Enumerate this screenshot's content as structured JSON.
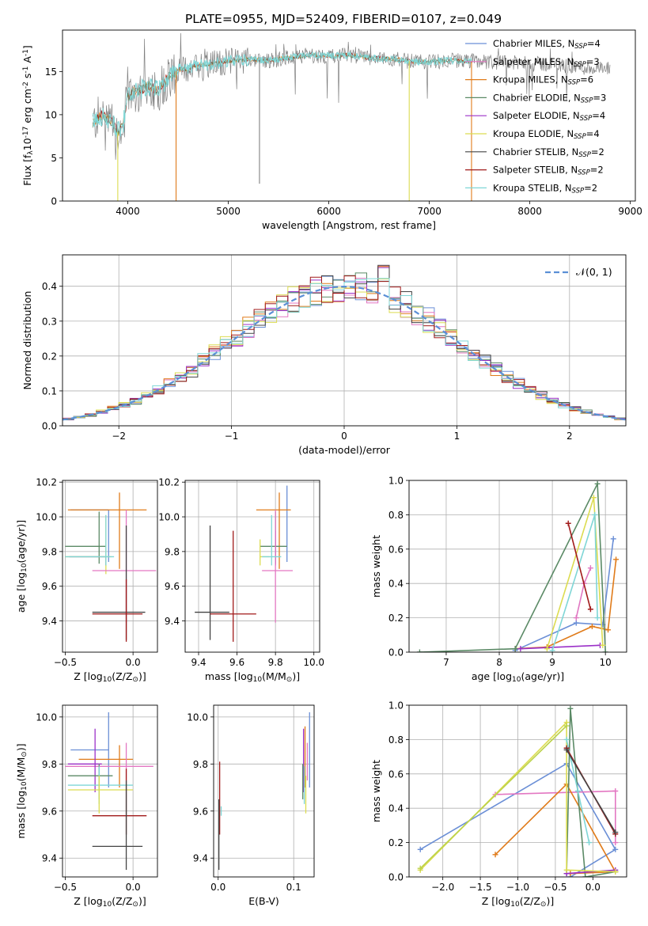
{
  "figure": {
    "title": "PLATE=0955, MJD=52409, FIBERID=0107, z=0.049"
  },
  "legend_fits": [
    {
      "label": "Chabrier MILES, N",
      "sub": "SSP",
      "tail": "=4",
      "color": "#6b8fd6"
    },
    {
      "label": "Salpeter MILES, N",
      "sub": "SSP",
      "tail": "=3",
      "color": "#e377c2"
    },
    {
      "label": "Kroupa MILES, N",
      "sub": "SSP",
      "tail": "=6",
      "color": "#e07b1a"
    },
    {
      "label": "Chabrier ELODIE, N",
      "sub": "SSP",
      "tail": "=3",
      "color": "#5b8a66"
    },
    {
      "label": "Salpeter ELODIE, N",
      "sub": "SSP",
      "tail": "=4",
      "color": "#9b30c8"
    },
    {
      "label": "Kroupa ELODIE, N",
      "sub": "SSP",
      "tail": "=4",
      "color": "#dcdc50"
    },
    {
      "label": "Chabrier STELIB, N",
      "sub": "SSP",
      "tail": "=2",
      "color": "#444444"
    },
    {
      "label": "Salpeter STELIB, N",
      "sub": "SSP",
      "tail": "=2",
      "color": "#a11a1a"
    },
    {
      "label": "Kroupa STELIB, N",
      "sub": "SSP",
      "tail": "=2",
      "color": "#7fd6d6"
    }
  ],
  "chart_data": [
    {
      "id": "spectrum",
      "type": "line",
      "xlabel": "wavelength [Angstrom, rest frame]",
      "ylabel_parts": [
        "Flux [f",
        "λ",
        "10",
        "-17",
        " erg cm",
        "-2",
        " s",
        "-1",
        " A",
        "-1",
        "]"
      ],
      "xlim": [
        3350,
        9050
      ],
      "ylim": [
        0,
        19.8
      ],
      "xticks": [
        4000,
        5000,
        6000,
        7000,
        8000,
        9000
      ],
      "yticks": [
        0,
        5,
        10,
        15
      ],
      "grid": false,
      "legend_position": "right",
      "data_color": "#808080",
      "model_color": "#7fd6d6",
      "continuum": {
        "x": [
          3650,
          3700,
          3750,
          3800,
          3850,
          3900,
          3950,
          4000,
          4050,
          4100,
          4200,
          4300,
          4400,
          4500,
          4600,
          4700,
          4800,
          4900,
          5000,
          5200,
          5400,
          5600,
          5800,
          6000,
          6200,
          6400,
          6600,
          6800,
          7000,
          7200,
          7400,
          7600,
          7800,
          8000,
          8200,
          8400,
          8600,
          8800
        ],
        "y": [
          9.0,
          9.6,
          10.0,
          9.4,
          9.0,
          8.0,
          8.6,
          12.0,
          12.8,
          12.6,
          13.4,
          12.8,
          14.4,
          15.2,
          15.3,
          15.8,
          15.8,
          16.0,
          16.2,
          16.4,
          16.3,
          16.6,
          16.9,
          16.8,
          16.9,
          16.6,
          16.5,
          16.2,
          16.1,
          16.3,
          16.2,
          16.1,
          16.0,
          15.9,
          15.8,
          15.6,
          15.4,
          15.2
        ]
      },
      "model_range": [
        3650,
        7420
      ],
      "spikes": [
        {
          "x": 3900,
          "y": 0,
          "color": "#dcdc50"
        },
        {
          "x": 4480,
          "y": 0,
          "color": "#e07b1a"
        },
        {
          "x": 5310,
          "y": 2,
          "color": "#808080"
        },
        {
          "x": 6800,
          "y": 0,
          "color": "#dcdc50"
        },
        {
          "x": 7420,
          "y": 0,
          "color": "#e07b1a"
        }
      ]
    },
    {
      "id": "residuals",
      "type": "bar",
      "xlabel": "(data-model)/error",
      "ylabel": "Normed distribution",
      "xlim": [
        -2.5,
        2.5
      ],
      "ylim": [
        0,
        0.49
      ],
      "xticks": [
        -2,
        -1,
        0,
        1,
        2
      ],
      "yticks": [
        0.0,
        0.1,
        0.2,
        0.3,
        0.4
      ],
      "grid": true,
      "legend": "𝒩(0, 1)",
      "legend_position": "top-right",
      "normal_color": "#5b8fd6",
      "bin_width": 0.1,
      "series_colors": [
        "#6b8fd6",
        "#e377c2",
        "#e07b1a",
        "#5b8a66",
        "#9b30c8",
        "#dcdc50",
        "#444444",
        "#a11a1a",
        "#7fd6d6"
      ]
    },
    {
      "id": "age-vs-Z",
      "type": "scatter",
      "xlabel_parts": [
        "Z [log",
        "10",
        "(Z/Z",
        "⊙",
        ")]"
      ],
      "ylabel_parts": [
        "age  [log",
        "10",
        "(age/yr)]"
      ],
      "xlim": [
        -0.52,
        0.18
      ],
      "ylim": [
        9.22,
        10.21
      ],
      "xticks": [
        -0.5,
        0.0
      ],
      "yticks": [
        9.4,
        9.6,
        9.8,
        10.0,
        10.2
      ],
      "grid": true,
      "points": [
        {
          "x": -0.18,
          "xerr": [
            0.28,
            0.0
          ],
          "y": 10.04,
          "yerr": [
            0.3,
            0.0
          ],
          "color": "#6b8fd6"
        },
        {
          "x": -0.1,
          "xerr": [
            0.38,
            0.2
          ],
          "y": 10.04,
          "yerr": [
            0.34,
            0.1
          ],
          "color": "#e07b1a"
        },
        {
          "x": -0.25,
          "xerr": [
            0.25,
            0.05
          ],
          "y": 9.83,
          "yerr": [
            0.1,
            0.2
          ],
          "color": "#5b8a66"
        },
        {
          "x": -0.2,
          "xerr": [
            0.27,
            0.0
          ],
          "y": 9.77,
          "yerr": [
            0.05,
            0.0
          ],
          "color": "#9b30c8"
        },
        {
          "x": -0.2,
          "xerr": [
            0.3,
            0.04
          ],
          "y": 9.77,
          "yerr": [
            0.1,
            0.24
          ],
          "color": "#dcdc50"
        },
        {
          "x": -0.05,
          "xerr": [
            0.25,
            0.22
          ],
          "y": 9.69,
          "yerr": [
            0.3,
            0.35
          ],
          "color": "#e377c2"
        },
        {
          "x": -0.2,
          "xerr": [
            0.3,
            0.06
          ],
          "y": 9.77,
          "yerr": [
            0.05,
            0.24
          ],
          "color": "#7fd6d6"
        },
        {
          "x": -0.05,
          "xerr": [
            0.25,
            0.14
          ],
          "y": 9.45,
          "yerr": [
            0.16,
            0.5
          ],
          "color": "#444444"
        },
        {
          "x": -0.05,
          "xerr": [
            0.25,
            0.12
          ],
          "y": 9.44,
          "yerr": [
            0.16,
            0.2
          ],
          "color": "#a11a1a"
        }
      ]
    },
    {
      "id": "age-vs-mass",
      "type": "scatter",
      "xlabel_parts": [
        "mass [log",
        "10",
        "(M/M",
        "⊙",
        ")]"
      ],
      "ylabel_parts": [],
      "xlim": [
        9.33,
        10.03
      ],
      "ylim": [
        9.22,
        10.21
      ],
      "xticks": [
        9.4,
        9.6,
        9.8,
        10.0
      ],
      "yticks": [
        9.4,
        9.6,
        9.8,
        10.0,
        10.2
      ],
      "grid": true,
      "points": [
        {
          "x": 9.86,
          "xerr": [
            0.0,
            0.0
          ],
          "y": 10.04,
          "yerr": [
            0.3,
            0.14
          ],
          "color": "#6b8fd6"
        },
        {
          "x": 9.82,
          "xerr": [
            0.12,
            0.06
          ],
          "y": 10.04,
          "yerr": [
            0.34,
            0.1
          ],
          "color": "#e07b1a"
        },
        {
          "x": 9.8,
          "xerr": [
            0.08,
            0.06
          ],
          "y": 9.83,
          "yerr": [
            0.1,
            0.2
          ],
          "color": "#5b8a66"
        },
        {
          "x": 9.8,
          "xerr": [
            0.0,
            0.0
          ],
          "y": 9.77,
          "yerr": [
            0.05,
            0.15
          ],
          "color": "#9b30c8"
        },
        {
          "x": 9.72,
          "xerr": [
            0.0,
            0.05
          ],
          "y": 9.77,
          "yerr": [
            0.05,
            0.1
          ],
          "color": "#dcdc50"
        },
        {
          "x": 9.8,
          "xerr": [
            0.07,
            0.09
          ],
          "y": 9.69,
          "yerr": [
            0.3,
            0.35
          ],
          "color": "#e377c2"
        },
        {
          "x": 9.78,
          "xerr": [
            0.05,
            0.05
          ],
          "y": 9.77,
          "yerr": [
            0.05,
            0.24
          ],
          "color": "#7fd6d6"
        },
        {
          "x": 9.46,
          "xerr": [
            0.08,
            0.1
          ],
          "y": 9.45,
          "yerr": [
            0.16,
            0.5
          ],
          "color": "#444444"
        },
        {
          "x": 9.58,
          "xerr": [
            0.12,
            0.12
          ],
          "y": 9.44,
          "yerr": [
            0.16,
            0.48
          ],
          "color": "#a11a1a"
        }
      ]
    },
    {
      "id": "mass-weight-vs-age",
      "type": "line",
      "xlabel_parts": [
        "age  [log",
        "10",
        "(age/yr)]"
      ],
      "ylabel": "mass weight",
      "xlim": [
        6.3,
        10.4
      ],
      "ylim": [
        0.0,
        1.0
      ],
      "xticks": [
        7,
        8,
        9,
        10
      ],
      "yticks": [
        0.0,
        0.2,
        0.4,
        0.6,
        0.8,
        1.0
      ],
      "grid": true,
      "series": [
        {
          "color": "#6b8fd6",
          "x": [
            8.3,
            9.45,
            9.95,
            10.15
          ],
          "y": [
            0.01,
            0.17,
            0.16,
            0.66
          ]
        },
        {
          "color": "#e077c2",
          "x": [
            9.45,
            9.6,
            9.72
          ],
          "y": [
            0.2,
            0.4,
            0.49
          ]
        },
        {
          "color": "#e07b1a",
          "x": [
            8.3,
            8.9,
            9.75,
            10.05,
            10.2
          ],
          "y": [
            0.02,
            0.03,
            0.15,
            0.13,
            0.54
          ]
        },
        {
          "color": "#5b8a66",
          "x": [
            6.5,
            8.3,
            9.85,
            10.0
          ],
          "y": [
            0.0,
            0.02,
            0.98,
            0.0
          ]
        },
        {
          "color": "#9b30c8",
          "x": [
            8.4,
            9.9
          ],
          "y": [
            0.02,
            0.04
          ]
        },
        {
          "color": "#dcdc50",
          "x": [
            8.9,
            9.78,
            9.95
          ],
          "y": [
            0.02,
            0.9,
            0.04
          ]
        },
        {
          "color": "#7fd6d6",
          "x": [
            9.0,
            9.8,
            9.85
          ],
          "y": [
            0.01,
            0.8,
            0.2
          ]
        },
        {
          "color": "#a11a1a",
          "x": [
            9.3,
            9.72
          ],
          "y": [
            0.75,
            0.25
          ]
        }
      ]
    },
    {
      "id": "mass-vs-Z",
      "type": "scatter",
      "xlabel_parts": [
        "Z [log",
        "10",
        "(Z/Z",
        "⊙",
        ")]"
      ],
      "ylabel_parts": [
        "mass [log",
        "10",
        "(M/M",
        "⊙",
        ")]"
      ],
      "xlim": [
        -0.52,
        0.18
      ],
      "ylim": [
        9.32,
        10.05
      ],
      "xticks": [
        -0.5,
        0.0
      ],
      "yticks": [
        9.4,
        9.6,
        9.8,
        10.0
      ],
      "grid": true,
      "points": [
        {
          "x": -0.18,
          "xerr": [
            0.28,
            0.0
          ],
          "y": 9.86,
          "yerr": [
            0.16,
            0.16
          ],
          "color": "#6b8fd6"
        },
        {
          "x": -0.1,
          "xerr": [
            0.3,
            0.1
          ],
          "y": 9.82,
          "yerr": [
            0.12,
            0.06
          ],
          "color": "#e07b1a"
        },
        {
          "x": -0.05,
          "xerr": [
            0.45,
            0.2
          ],
          "y": 9.79,
          "yerr": [
            0.06,
            0.1
          ],
          "color": "#e377c2"
        },
        {
          "x": -0.28,
          "xerr": [
            0.2,
            0.05
          ],
          "y": 9.8,
          "yerr": [
            0.12,
            0.15
          ],
          "color": "#9b30c8"
        },
        {
          "x": -0.25,
          "xerr": [
            0.23,
            0.1
          ],
          "y": 9.75,
          "yerr": [
            0.1,
            0.05
          ],
          "color": "#5b8a66"
        },
        {
          "x": -0.25,
          "xerr": [
            0.23,
            0.25
          ],
          "y": 9.71,
          "yerr": [
            0.08,
            0.08
          ],
          "color": "#7fd6d6"
        },
        {
          "x": -0.25,
          "xerr": [
            0.23,
            0.25
          ],
          "y": 9.69,
          "yerr": [
            0.1,
            0.06
          ],
          "color": "#dcdc50"
        },
        {
          "x": -0.05,
          "xerr": [
            0.25,
            0.15
          ],
          "y": 9.58,
          "yerr": [
            0.08,
            0.2
          ],
          "color": "#a11a1a"
        },
        {
          "x": -0.05,
          "xerr": [
            0.25,
            0.12
          ],
          "y": 9.45,
          "yerr": [
            0.1,
            0.28
          ],
          "color": "#444444"
        }
      ]
    },
    {
      "id": "mass-vs-ebv",
      "type": "scatter",
      "xlabel": "E(B-V)",
      "ylabel_parts": [],
      "xlim": [
        -0.006,
        0.127
      ],
      "ylim": [
        9.32,
        10.05
      ],
      "xticks": [
        0.0,
        0.1
      ],
      "yticks": [
        9.4,
        9.6,
        9.8,
        10.0
      ],
      "grid": true,
      "points": [
        {
          "x": 0.121,
          "xerr": [
            0,
            0
          ],
          "y": 9.86,
          "yerr": [
            0.16,
            0.16
          ],
          "color": "#6b8fd6"
        },
        {
          "x": 0.115,
          "xerr": [
            0,
            0
          ],
          "y": 9.82,
          "yerr": [
            0.12,
            0.14
          ],
          "color": "#e07b1a"
        },
        {
          "x": 0.118,
          "xerr": [
            0,
            0
          ],
          "y": 9.79,
          "yerr": [
            0.06,
            0.1
          ],
          "color": "#e377c2"
        },
        {
          "x": 0.113,
          "xerr": [
            0,
            0
          ],
          "y": 9.8,
          "yerr": [
            0.12,
            0.15
          ],
          "color": "#9b30c8"
        },
        {
          "x": 0.112,
          "xerr": [
            0,
            0
          ],
          "y": 9.75,
          "yerr": [
            0.1,
            0.05
          ],
          "color": "#5b8a66"
        },
        {
          "x": 0.114,
          "xerr": [
            0,
            0
          ],
          "y": 9.71,
          "yerr": [
            0.08,
            0.08
          ],
          "color": "#7fd6d6"
        },
        {
          "x": 0.116,
          "xerr": [
            0,
            0
          ],
          "y": 9.69,
          "yerr": [
            0.1,
            0.06
          ],
          "color": "#dcdc50"
        },
        {
          "x": 0.004,
          "xerr": [
            0,
            0
          ],
          "y": 9.6,
          "yerr": [
            0.02,
            0.02
          ],
          "color": "#7fd6d6"
        },
        {
          "x": 0.002,
          "xerr": [
            0,
            0
          ],
          "y": 9.58,
          "yerr": [
            0.08,
            0.23
          ],
          "color": "#a11a1a"
        },
        {
          "x": 0.001,
          "xerr": [
            0,
            0
          ],
          "y": 9.45,
          "yerr": [
            0.1,
            0.2
          ],
          "color": "#444444"
        }
      ]
    },
    {
      "id": "mass-weight-vs-Z",
      "type": "line",
      "xlabel_parts": [
        "Z [log",
        "10",
        "(Z/Z",
        "⊙",
        ")]"
      ],
      "ylabel": "mass weight",
      "xlim": [
        -2.45,
        0.45
      ],
      "ylim": [
        0.0,
        1.0
      ],
      "xticks": [
        -2.0,
        -1.5,
        -1.0,
        -0.5,
        0.0
      ],
      "yticks": [
        0.0,
        0.2,
        0.4,
        0.6,
        0.8,
        1.0
      ],
      "grid": true,
      "series": [
        {
          "color": "#6b8fd6",
          "x": [
            -2.3,
            -0.35,
            0.3,
            -0.3
          ],
          "y": [
            0.16,
            0.66,
            0.16,
            0.0
          ]
        },
        {
          "color": "#e377c2",
          "x": [
            -1.3,
            0.3,
            0.3
          ],
          "y": [
            0.48,
            0.5,
            0.2
          ]
        },
        {
          "color": "#e07b1a",
          "x": [
            -1.3,
            -0.35,
            0.3,
            -0.3
          ],
          "y": [
            0.13,
            0.54,
            0.03,
            0.02
          ]
        },
        {
          "color": "#5b8a66",
          "x": [
            -0.35,
            -0.3,
            -0.1,
            0.3
          ],
          "y": [
            0.02,
            0.98,
            0.0,
            0.03
          ]
        },
        {
          "color": "#9b30c8",
          "x": [
            -0.35,
            0.3
          ],
          "y": [
            0.02,
            0.04
          ]
        },
        {
          "color": "#dcdc50",
          "x": [
            -2.3,
            -0.35,
            -0.35,
            0.3
          ],
          "y": [
            0.04,
            0.9,
            0.04,
            0.03
          ]
        },
        {
          "color": "#bcd24a",
          "x": [
            -2.3,
            -0.35
          ],
          "y": [
            0.05,
            0.88
          ]
        },
        {
          "color": "#7fd6d6",
          "x": [
            -0.35,
            -0.2,
            -0.05
          ],
          "y": [
            0.8,
            0.5,
            0.2
          ]
        },
        {
          "color": "#a11a1a",
          "x": [
            -0.35,
            0.3
          ],
          "y": [
            0.75,
            0.25
          ]
        },
        {
          "color": "#444444",
          "x": [
            -0.35,
            0.3
          ],
          "y": [
            0.74,
            0.26
          ]
        }
      ]
    }
  ]
}
